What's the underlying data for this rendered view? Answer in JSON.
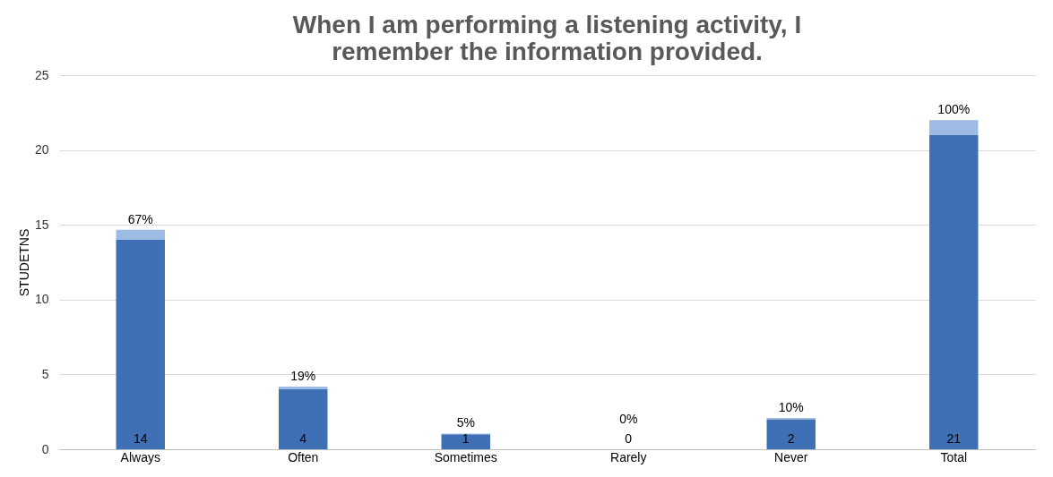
{
  "chart_data": {
    "type": "bar",
    "title": "When I am performing a listening activity, I remember the information provided.",
    "ylabel": "STUDETNS",
    "categories": [
      "Always",
      "Often",
      "Sometimes",
      "Rarely",
      "Never",
      "Total"
    ],
    "stacked": true,
    "series": [
      {
        "color": "#3f6fb5",
        "values": [
          14,
          4,
          1,
          0,
          2,
          21
        ],
        "value_labels": [
          "14",
          "4",
          "1",
          "0",
          "2",
          "21"
        ]
      },
      {
        "color": "#9dbbe3",
        "values": [
          0.67,
          0.19,
          0.05,
          0,
          0.1,
          1.0
        ],
        "value_labels": [
          "67%",
          "19%",
          "5%",
          "0%",
          "10%",
          "100%"
        ]
      }
    ],
    "ylim": [
      0,
      25
    ],
    "yticks": [
      0,
      5,
      10,
      15,
      20,
      25
    ],
    "grid": "y"
  }
}
